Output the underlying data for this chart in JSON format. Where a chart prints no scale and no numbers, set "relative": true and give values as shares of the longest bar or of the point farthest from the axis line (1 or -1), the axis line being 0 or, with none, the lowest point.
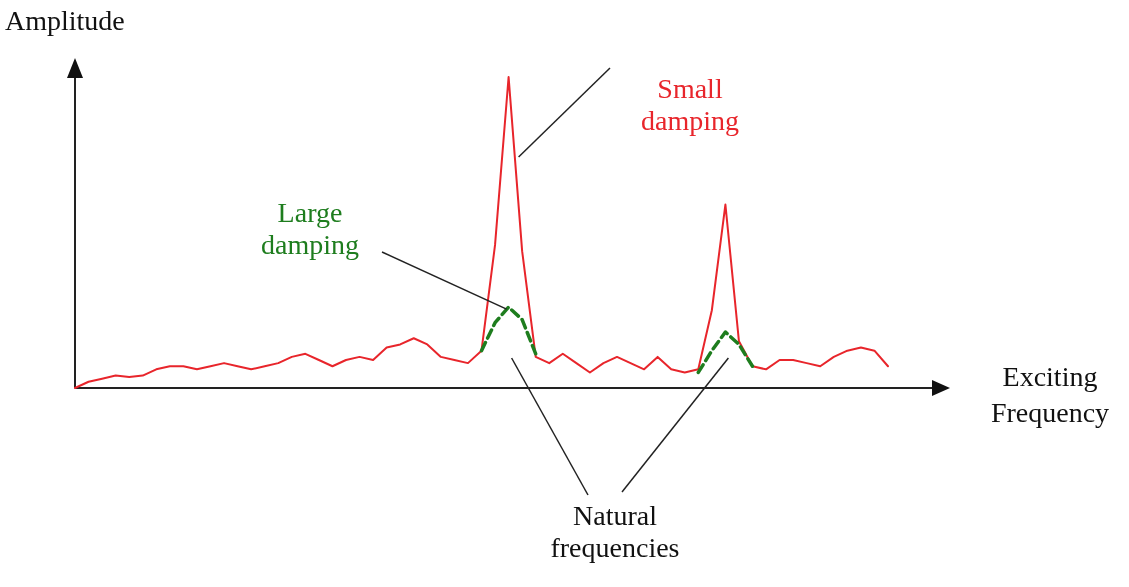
{
  "chart_data": {
    "type": "line",
    "relative": true,
    "xlabel": "Exciting Frequency",
    "ylabel": "Amplitude",
    "categories": [
      null,
      null,
      null,
      null,
      null,
      null,
      null,
      null,
      null,
      null,
      null,
      null,
      null,
      null,
      null,
      null,
      null,
      null,
      null,
      null,
      null,
      null,
      null,
      null,
      null,
      null,
      null,
      null,
      null,
      null,
      null,
      null,
      null,
      null,
      null,
      null,
      null,
      null,
      null,
      null,
      null,
      null,
      null,
      null,
      null,
      null,
      null,
      null,
      null,
      null,
      null,
      null,
      null,
      null,
      null,
      null,
      null,
      null,
      null,
      null,
      null
    ],
    "series": [
      {
        "name": "Small damping",
        "color": "#e8252b",
        "line_style": "solid",
        "values": [
          0,
          0.02,
          0.03,
          0.04,
          0.035,
          0.04,
          0.06,
          0.07,
          0.07,
          0.06,
          0.07,
          0.08,
          0.07,
          0.06,
          0.07,
          0.08,
          0.1,
          0.11,
          0.09,
          0.07,
          0.09,
          0.1,
          0.09,
          0.13,
          0.14,
          0.16,
          0.14,
          0.1,
          0.09,
          0.08,
          0.12,
          0.46,
          1,
          0.44,
          0.1,
          0.08,
          0.11,
          0.08,
          0.05,
          0.08,
          0.1,
          0.08,
          0.06,
          0.1,
          0.06,
          0.05,
          0.06,
          0.25,
          0.59,
          0.15,
          0.07,
          0.06,
          0.09,
          0.09,
          0.08,
          0.07,
          0.1,
          0.12,
          0.13,
          0.12,
          0.07
        ]
      },
      {
        "name": "Large damping",
        "color": "#1e7d1e",
        "line_style": "dashed",
        "values": [
          null,
          null,
          null,
          null,
          null,
          null,
          null,
          null,
          null,
          null,
          null,
          null,
          null,
          null,
          null,
          null,
          null,
          null,
          null,
          null,
          null,
          null,
          null,
          null,
          null,
          null,
          null,
          null,
          null,
          null,
          0.12,
          0.21,
          0.26,
          0.22,
          0.11,
          null,
          null,
          null,
          null,
          null,
          null,
          null,
          null,
          null,
          null,
          null,
          0.05,
          0.12,
          0.18,
          0.14,
          0.07,
          null,
          null,
          null,
          null,
          null,
          null,
          null,
          null,
          null,
          null
        ]
      }
    ],
    "annotations": [
      "Natural frequencies"
    ]
  }
}
